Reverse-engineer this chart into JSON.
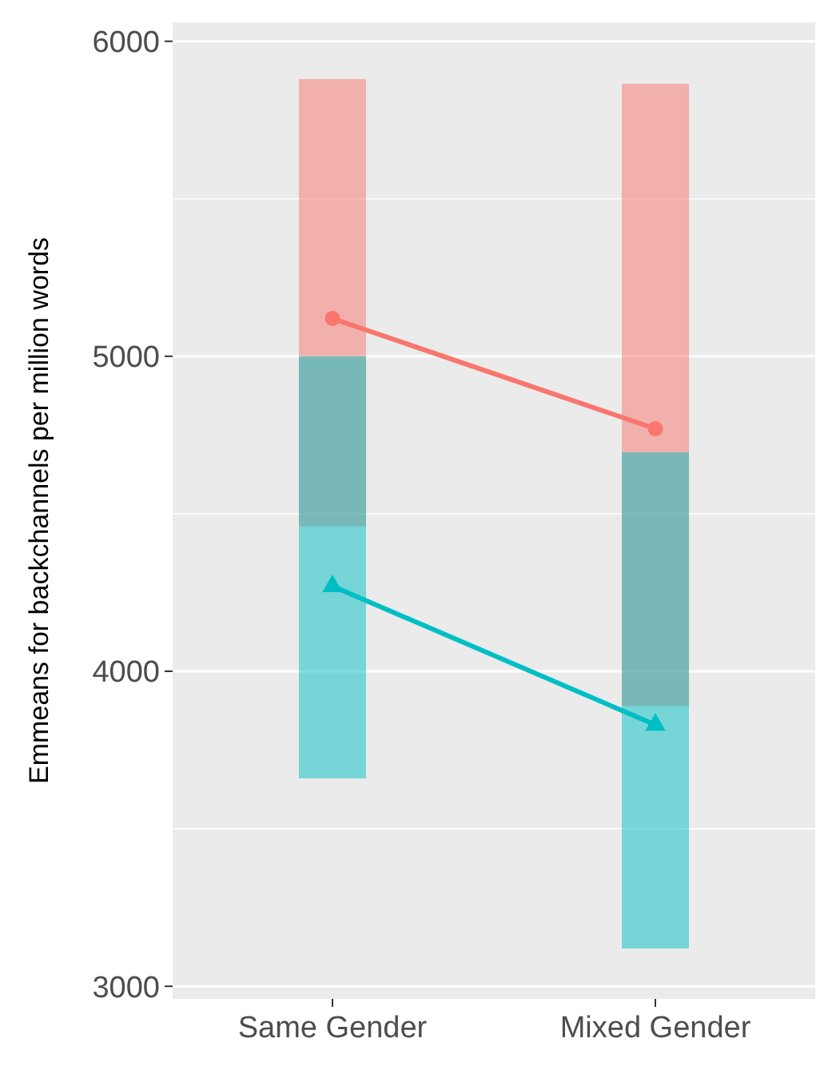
{
  "chart_data": {
    "type": "line",
    "ylabel": "Emmeans for backchannels per million words",
    "categories": [
      "Same Gender",
      "Mixed Gender"
    ],
    "series": [
      {
        "type": "bar",
        "color": "#f8766d",
        "base": [
          4460,
          3890
        ],
        "values": [
          1420,
          1975
        ]
      },
      {
        "type": "bar",
        "color": "#00bfc4",
        "base": [
          3660,
          3120
        ],
        "values": [
          1340,
          1575
        ]
      },
      {
        "color": "#f8766d",
        "values": [
          5120,
          4770
        ],
        "marker": "circle"
      },
      {
        "color": "#00bfc4",
        "values": [
          4270,
          3830
        ],
        "marker": "triangle"
      }
    ],
    "ylim": [
      2960,
      6060
    ],
    "yticks": [
      3000,
      4000,
      5000,
      6000
    ],
    "grid": "y"
  }
}
